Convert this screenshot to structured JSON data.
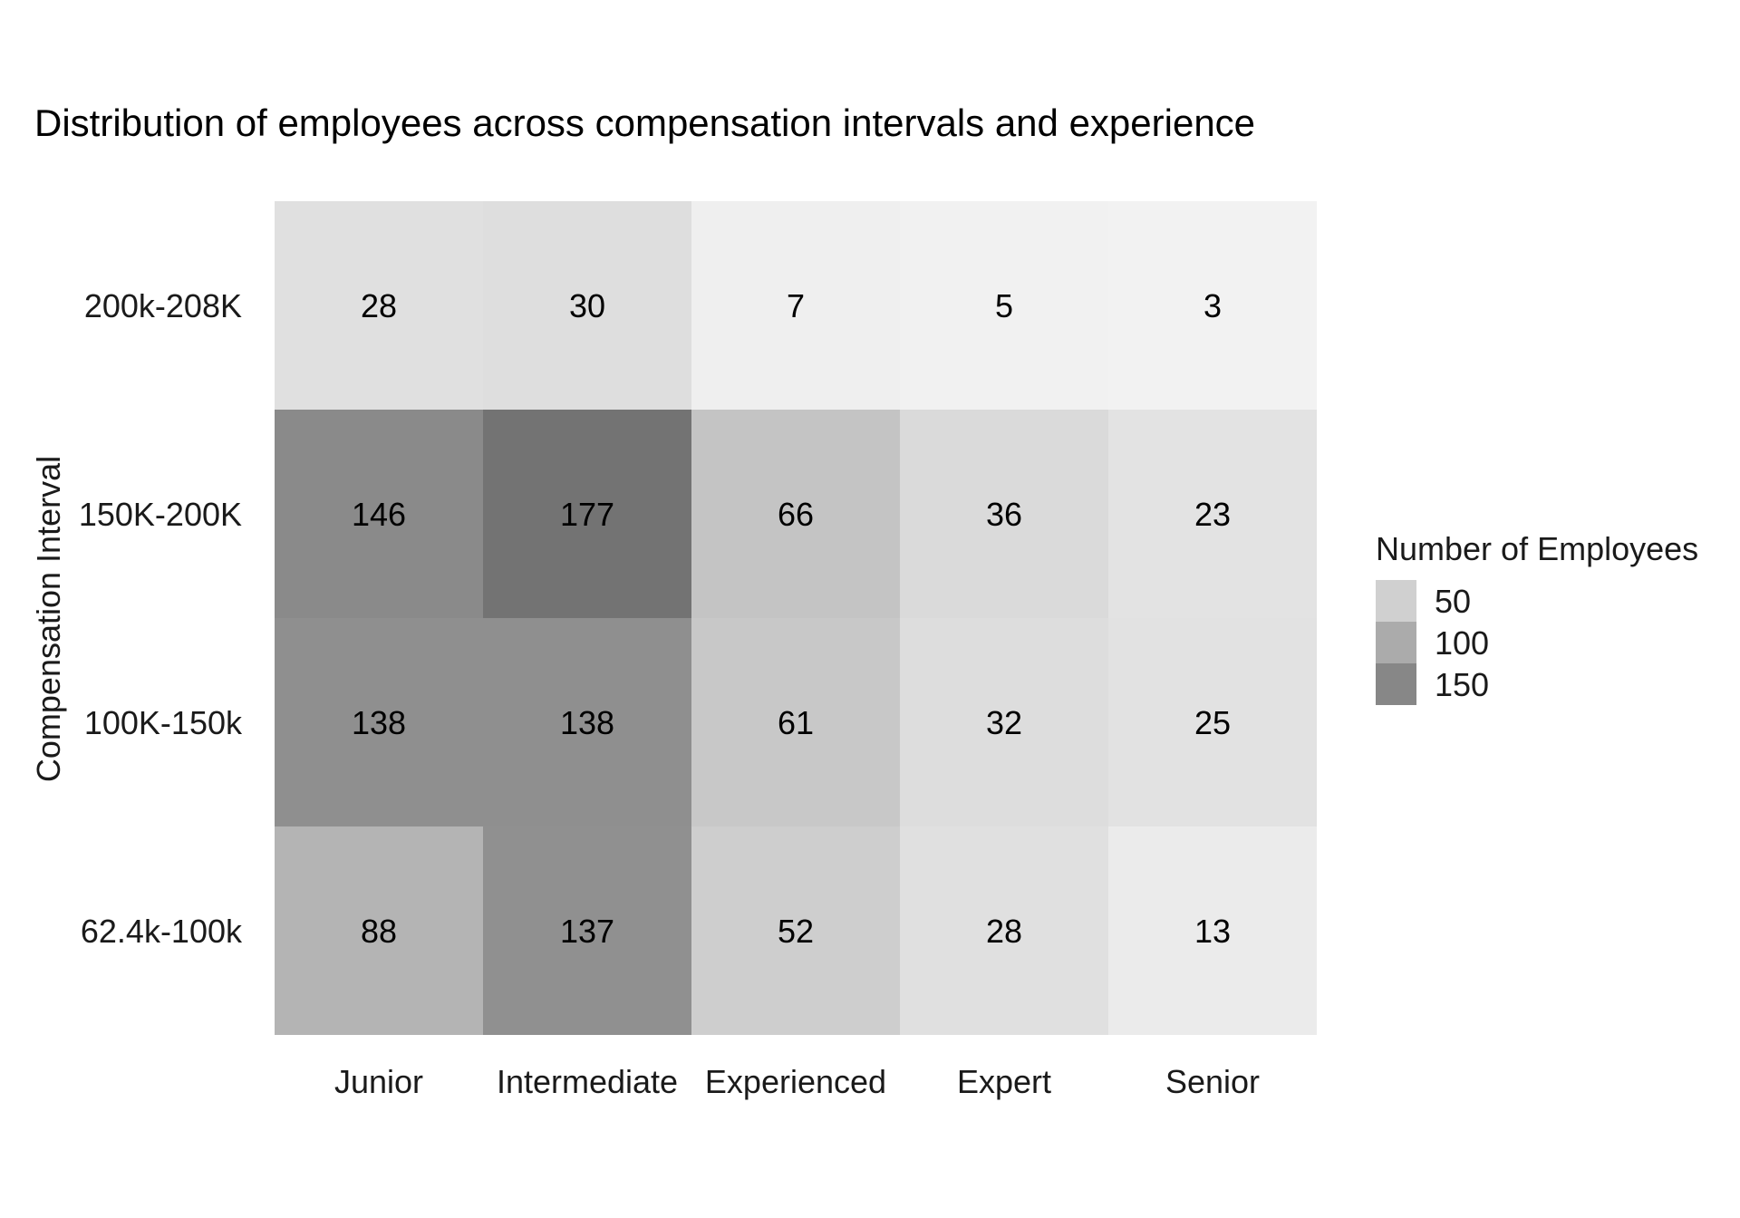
{
  "chart_data": {
    "type": "heatmap",
    "title": "Distribution of employees across compensation intervals and experience",
    "xlabel": "",
    "ylabel": "Compensation Interval",
    "x_categories": [
      "Junior",
      "Intermediate",
      "Experienced",
      "Expert",
      "Senior"
    ],
    "y_categories_top_to_bottom": [
      "200k-208K",
      "150K-200K",
      "100K-150k",
      "62.4k-100k"
    ],
    "values": [
      [
        28,
        30,
        7,
        5,
        3
      ],
      [
        146,
        177,
        66,
        36,
        23
      ],
      [
        138,
        138,
        61,
        32,
        25
      ],
      [
        88,
        137,
        52,
        28,
        13
      ]
    ],
    "legend": {
      "title": "Number of Employees",
      "position": "right",
      "breaks": [
        50,
        100,
        150
      ],
      "break_labels": [
        "50",
        "100",
        "150"
      ]
    },
    "color_scale": {
      "low": "#f2f2f2",
      "high": "#737373",
      "min": 3,
      "max": 177
    },
    "grid": false
  }
}
